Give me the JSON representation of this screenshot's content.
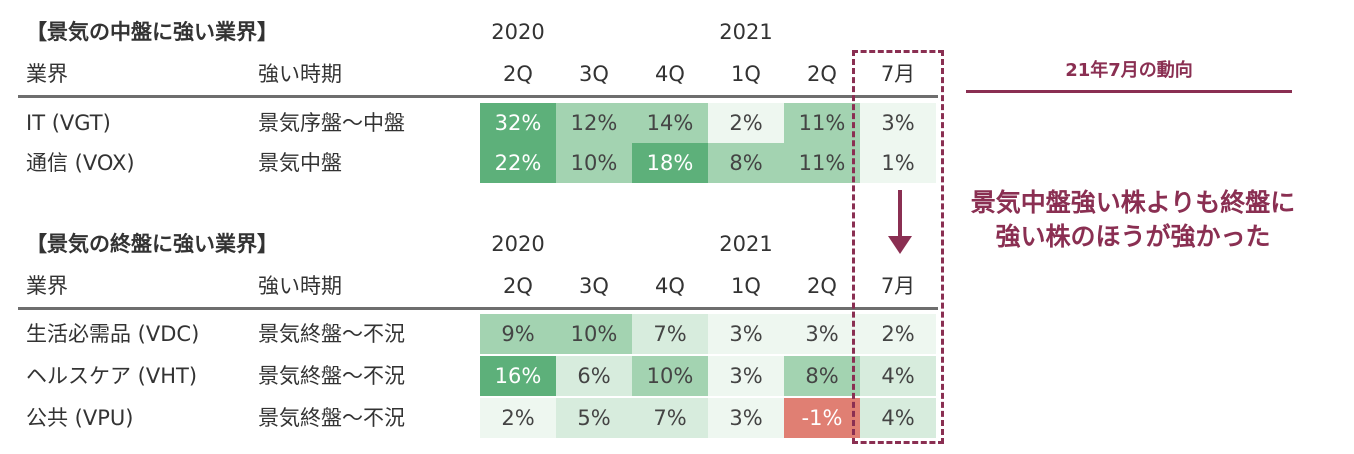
{
  "chart_data": {
    "type": "table",
    "columns": [
      {
        "year": "2020",
        "label": "2Q"
      },
      {
        "year": "",
        "label": "3Q"
      },
      {
        "year": "",
        "label": "4Q"
      },
      {
        "year": "2021",
        "label": "1Q"
      },
      {
        "year": "",
        "label": "2Q"
      },
      {
        "year": "",
        "label": "7月"
      }
    ],
    "colors": {
      "green_dark": "#5db07a",
      "green_mid": "#a3d3b1",
      "green_light": "#d7ecdd",
      "green_pale": "#eef7f0",
      "red": "#e07f73",
      "accent": "#8a2f52"
    },
    "tables": [
      {
        "title": "【景気の中盤に強い業界】",
        "header_industry": "業界",
        "header_period": "強い時期",
        "rows": [
          {
            "industry": "IT (VGT)",
            "period": "景気序盤～中盤",
            "values": [
              32,
              12,
              14,
              2,
              11,
              3
            ],
            "labels": [
              "32%",
              "12%",
              "14%",
              "2%",
              "11%",
              "3%"
            ]
          },
          {
            "industry": "通信 (VOX)",
            "period": "景気中盤",
            "values": [
              22,
              10,
              18,
              8,
              11,
              1
            ],
            "labels": [
              "22%",
              "10%",
              "18%",
              "8%",
              "11%",
              "1%"
            ]
          }
        ]
      },
      {
        "title": "【景気の終盤に強い業界】",
        "header_industry": "業界",
        "header_period": "強い時期",
        "rows": [
          {
            "industry": "生活必需品 (VDC)",
            "period": "景気終盤～不況",
            "values": [
              9,
              10,
              7,
              3,
              3,
              2
            ],
            "labels": [
              "9%",
              "10%",
              "7%",
              "3%",
              "3%",
              "2%"
            ]
          },
          {
            "industry": "ヘルスケア (VHT)",
            "period": "景気終盤～不況",
            "values": [
              16,
              6,
              10,
              3,
              8,
              4
            ],
            "labels": [
              "16%",
              "6%",
              "10%",
              "3%",
              "8%",
              "4%"
            ]
          },
          {
            "industry": "公共 (VPU)",
            "period": "景気終盤～不況",
            "values": [
              2,
              5,
              7,
              3,
              -1,
              4
            ],
            "labels": [
              "2%",
              "5%",
              "7%",
              "3%",
              "-1%",
              "4%"
            ]
          }
        ]
      }
    ]
  },
  "side": {
    "title": "21年7月の動向",
    "note": "景気中盤強い株よりも終盤に強い株のほうが強かった"
  }
}
